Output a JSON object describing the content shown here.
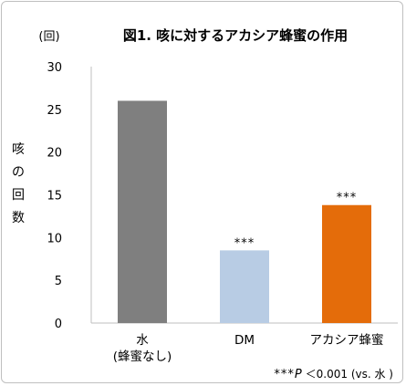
{
  "chart_data": {
    "type": "bar",
    "title": "図1. 咳に対するアカシア蜂蜜の作用",
    "y_unit": "(回)",
    "ylabel": "咳の回数",
    "categories": [
      [
        "水",
        "(蜂蜜なし)"
      ],
      [
        "DM"
      ],
      [
        "アカシア蜂蜜"
      ]
    ],
    "values": [
      26,
      8.5,
      13.8
    ],
    "colors": [
      "#7f7f7f",
      "#b8cce4",
      "#e46c0a"
    ],
    "significance": [
      "",
      "***",
      "***"
    ],
    "ylim": [
      0,
      30
    ],
    "yticks": [
      0,
      5,
      10,
      15,
      20,
      25,
      30
    ],
    "grid": false,
    "footnote": {
      "stars": "***",
      "p": "P",
      "rest": "＜0.001 (vs. 水 )"
    }
  }
}
